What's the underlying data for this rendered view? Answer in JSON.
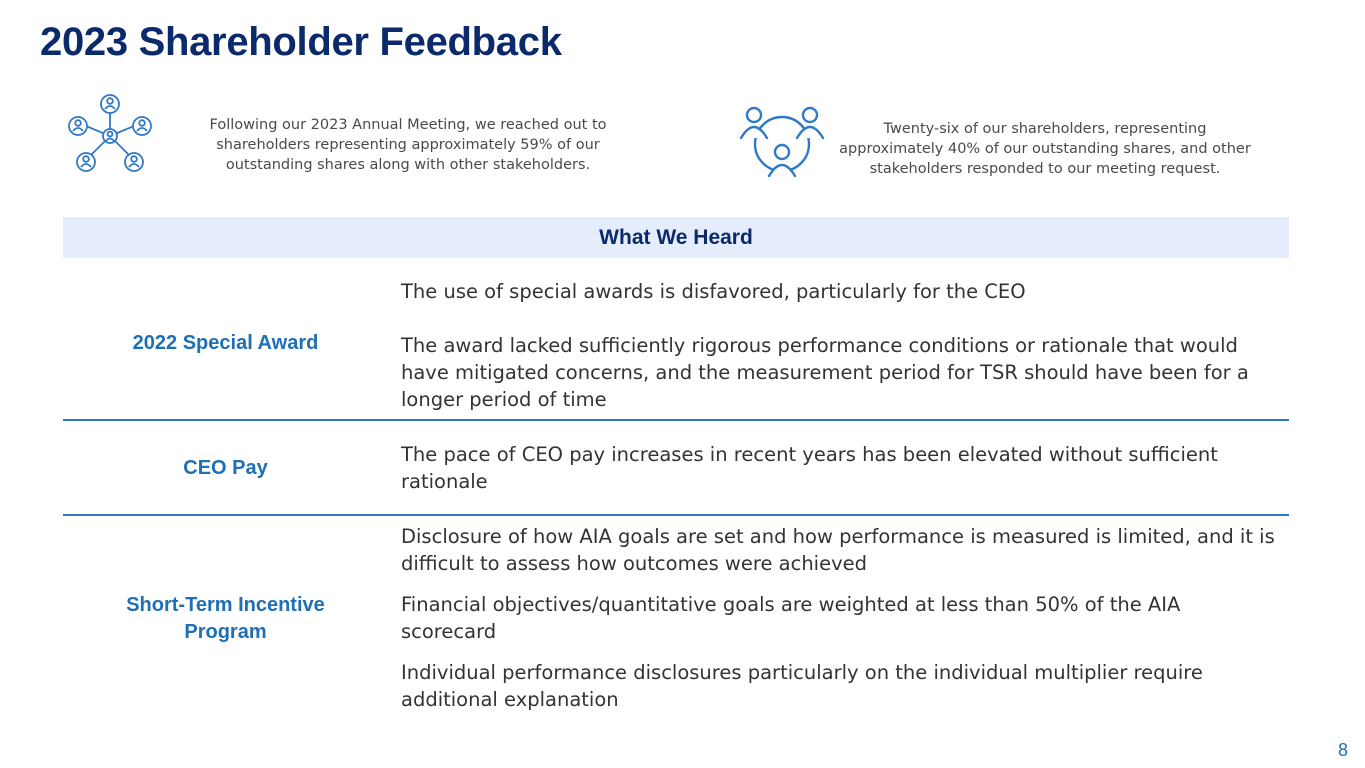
{
  "title": "2023 Shareholder Feedback",
  "intro_left": "Following our 2023 Annual Meeting, we reached out to shareholders representing approximately 59% of our outstanding shares along with other stakeholders.",
  "intro_right": "Twenty-six of our shareholders, representing approximately 40% of our outstanding shares, and other stakeholders responded to our meeting request.",
  "icons": {
    "left": "shareholder-network-icon",
    "right": "people-group-icon"
  },
  "table": {
    "header": "What We Heard",
    "rows": [
      {
        "label": "2022 Special Award",
        "items": [
          "The use of special awards is disfavored, particularly for the CEO",
          "The award lacked sufficiently rigorous performance conditions or rationale that would have mitigated concerns, and the measurement period for TSR should have been for a longer period of time"
        ]
      },
      {
        "label": "CEO Pay",
        "items": [
          "The pace of CEO pay increases in recent years has been elevated without sufficient rationale"
        ]
      },
      {
        "label": "Short-Term Incentive Program",
        "items": [
          "Disclosure of how AIA goals are set and how performance is measured is limited, and it is difficult to assess how outcomes were achieved",
          "Financial objectives/quantitative goals are weighted at less than 50% of the AIA scorecard",
          "Individual performance disclosures particularly on the individual multiplier require additional explanation"
        ]
      }
    ]
  },
  "page_number": "8",
  "colors": {
    "title": "#0b2a6b",
    "accent": "#1f6fb5",
    "header_bg": "#e5ecfb",
    "divider": "#2f79c6"
  }
}
